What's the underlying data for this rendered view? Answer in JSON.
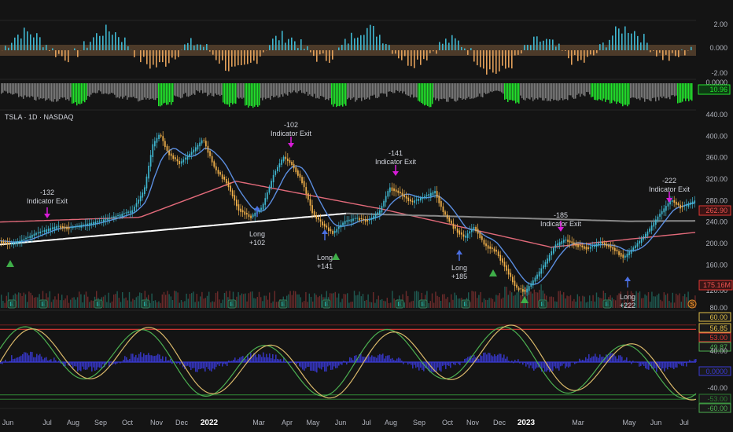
{
  "chart_title": "TSLA · 1D · NASDAQ",
  "x_axis": {
    "ticks": [
      "Jun",
      "Jul",
      "Aug",
      "Sep",
      "Oct",
      "Nov",
      "Dec",
      "2022",
      "Mar",
      "Apr",
      "May",
      "Jun",
      "Jul",
      "Aug",
      "Sep",
      "Oct",
      "Nov",
      "Dec",
      "2023",
      "Mar",
      "May",
      "Jun",
      "Jul"
    ]
  },
  "oscillator_top": {
    "ticks": [
      "2.00",
      "0.000",
      "-2.00"
    ],
    "colors": {
      "positive": "#3fb6cf",
      "negative": "#e2a05a"
    }
  },
  "volume_strength": {
    "ticks": [
      "0.0000"
    ],
    "last_badge": "10.96",
    "colors": {
      "base": "#7a7a7a",
      "highlight": "#22e32c"
    }
  },
  "price_pane": {
    "ticks": [
      "440.00",
      "400.00",
      "360.00",
      "320.00",
      "280.00",
      "240.00",
      "200.00",
      "160.00",
      "120.00",
      "80.00"
    ],
    "last_price_badge": "262.90",
    "ma_badge": "175.16M",
    "colors": {
      "up": "#3fb6cf",
      "down": "#f0b04a",
      "ma_fast": "#5b8ee0",
      "ma_mid": "#e26a7a",
      "ma_slow_first": "#ffffff",
      "ma_slow_second": "#8a8a8a"
    },
    "annotations": [
      {
        "kind": "exit",
        "pnl": "-132",
        "label": "Indicator Exit"
      },
      {
        "kind": "exit",
        "pnl": "-102",
        "label": "Indicator Exit"
      },
      {
        "kind": "exit",
        "pnl": "-141",
        "label": "Indicator Exit"
      },
      {
        "kind": "exit",
        "pnl": "-185",
        "label": "Indicator Exit"
      },
      {
        "kind": "exit",
        "pnl": "-222",
        "label": "Indicator Exit"
      },
      {
        "kind": "long",
        "label": "Long",
        "pnl": "+102"
      },
      {
        "kind": "long",
        "label": "Long",
        "pnl": "+141"
      },
      {
        "kind": "long",
        "label": "Long",
        "pnl": "+185"
      },
      {
        "kind": "long",
        "label": "Long",
        "pnl": "+222"
      }
    ],
    "event_markers": [
      "E",
      "E",
      "E",
      "E",
      "E",
      "E",
      "E",
      "E",
      "E",
      "E",
      "E",
      "E",
      "S"
    ]
  },
  "bottom_oscillator": {
    "ticks": [
      "60.00",
      "40.00",
      "0.0000",
      "-40.00",
      "-60.00"
    ],
    "badges": [
      "60.00",
      "56.85",
      "53.00",
      "49.87",
      "0.0000",
      "-53.00",
      "-60.00"
    ],
    "levels": {
      "upper_outer": 60,
      "upper_inner": 53,
      "zero": 0,
      "lower_inner": -53,
      "lower_outer": -60
    },
    "colors": {
      "upper_outer": "#e2c14a",
      "upper_inner": "#e53935",
      "signal": "#4caf50",
      "main": "#d9b86a",
      "histogram": "#3a3ad6",
      "lower_inner": "#2e7d32"
    }
  }
}
